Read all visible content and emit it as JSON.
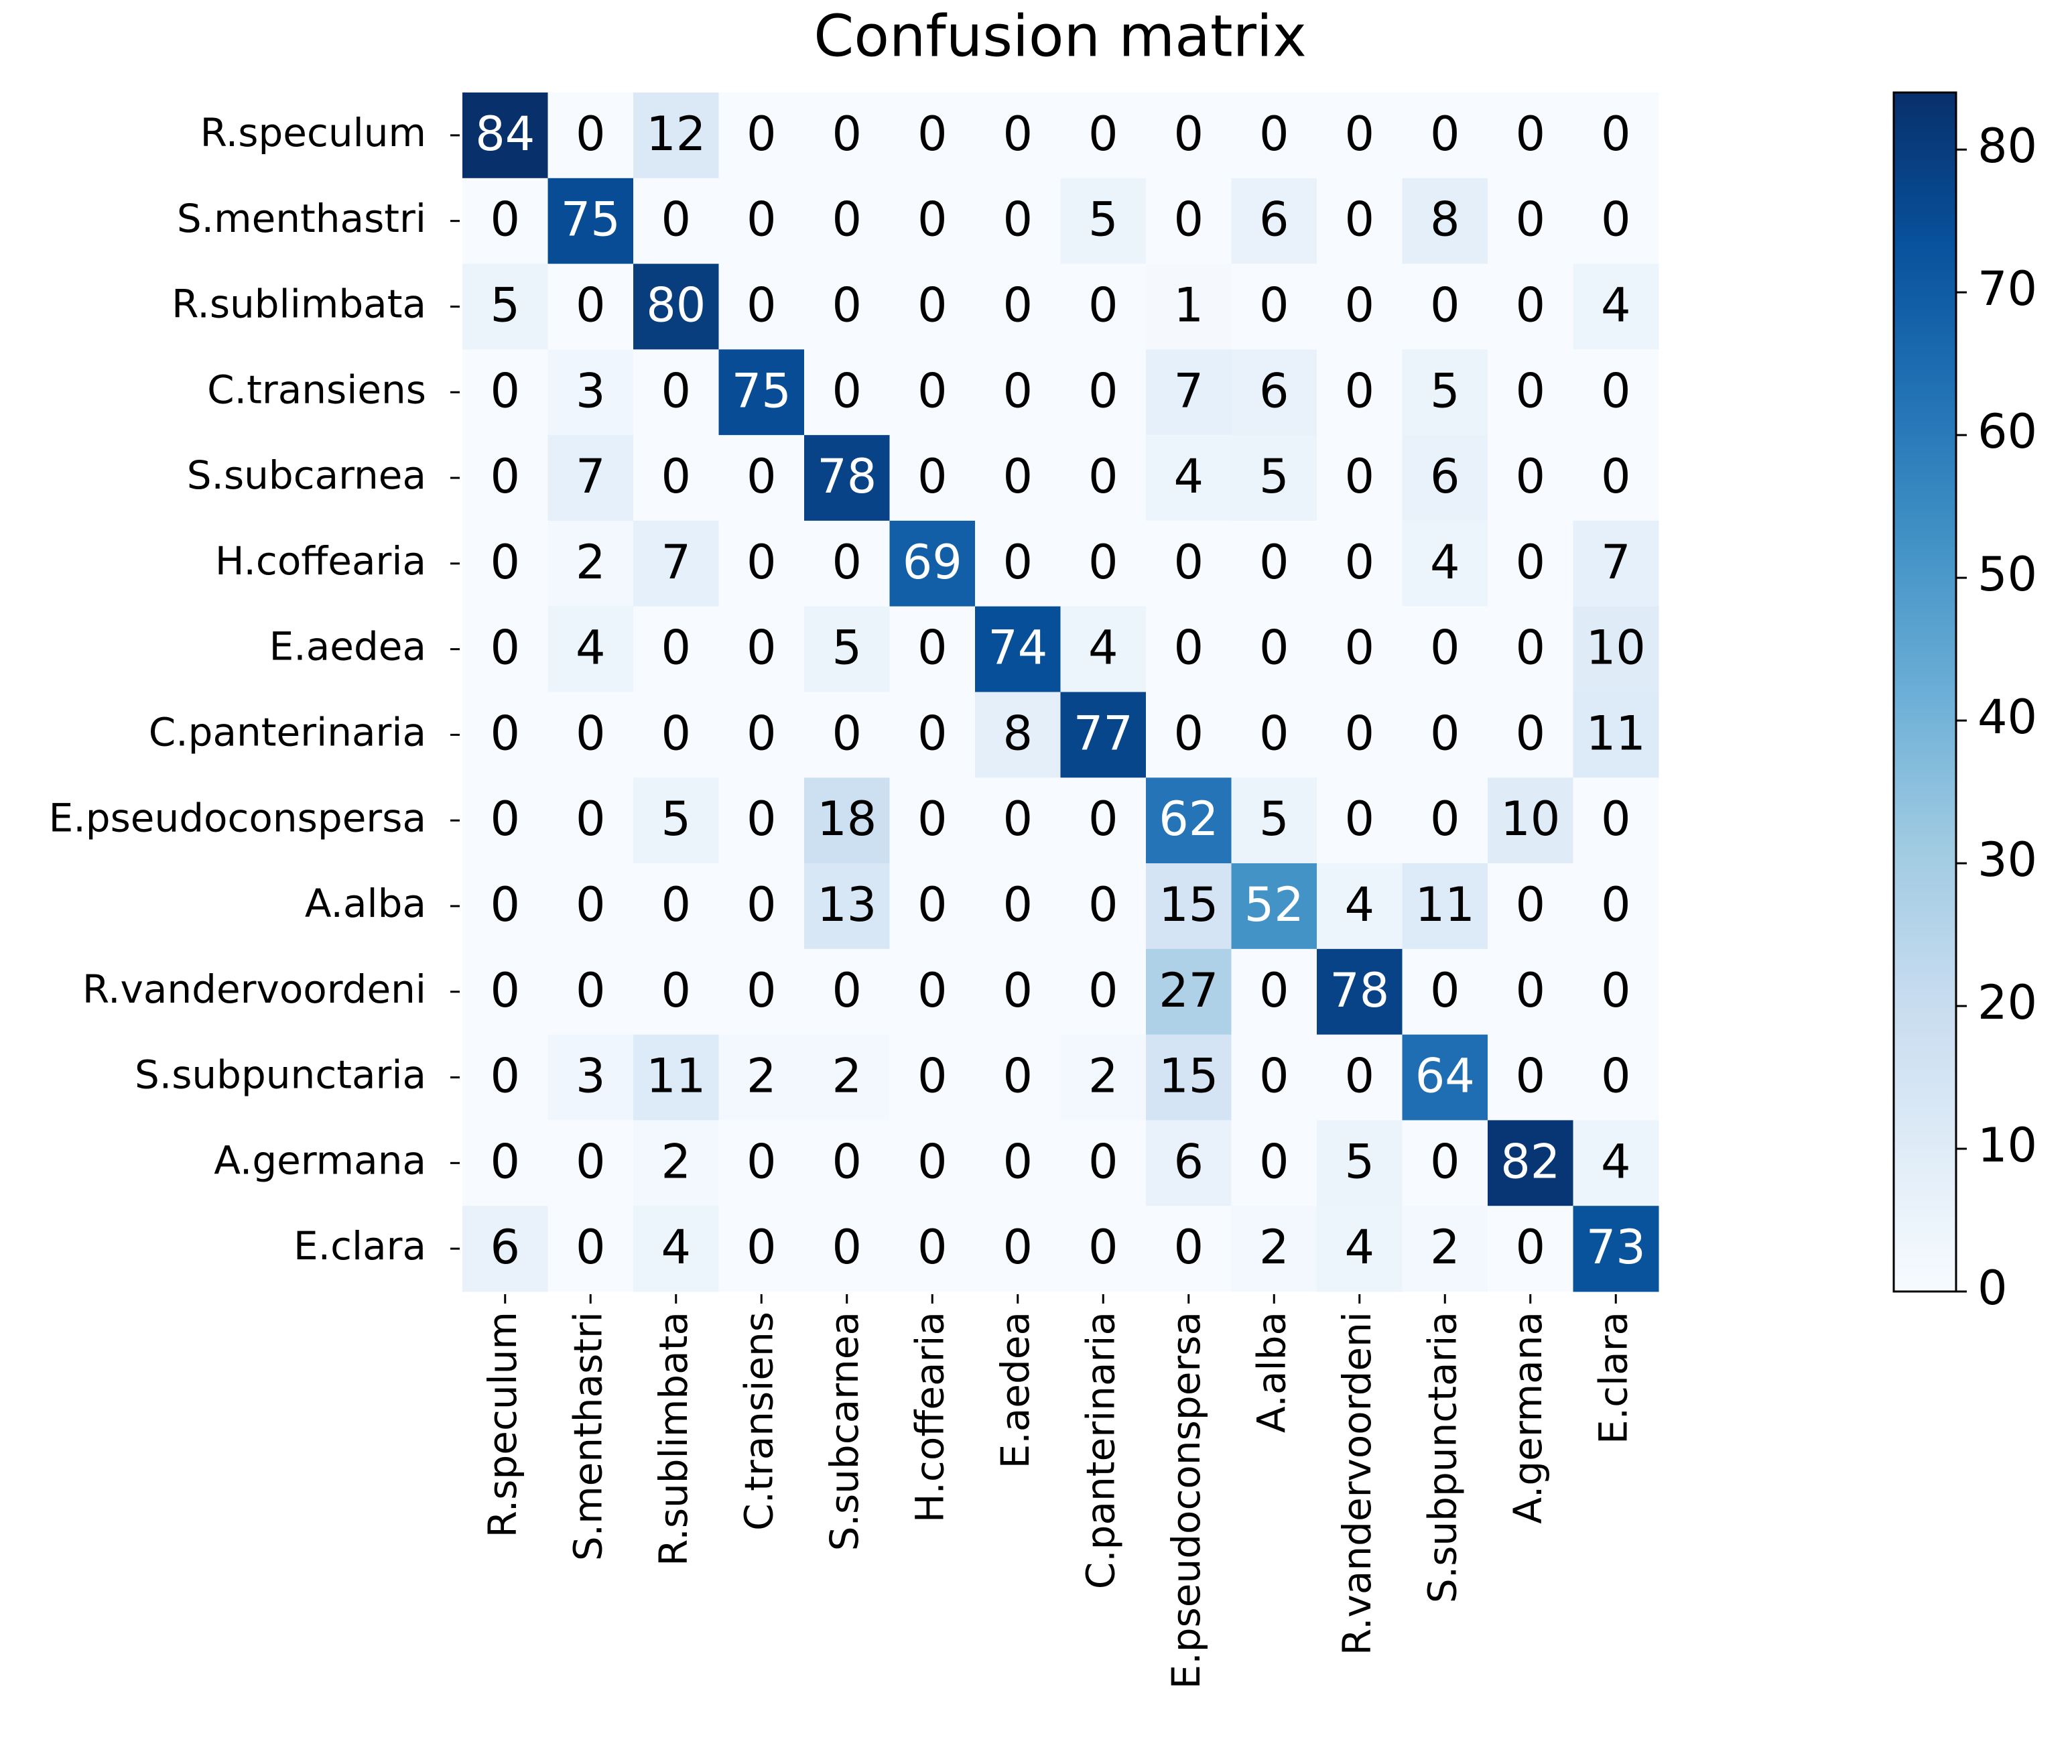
{
  "chart_data": {
    "type": "heatmap",
    "title": "Confusion matrix",
    "x_categories": [
      "R.speculum",
      "S.menthastri",
      "R.sublimbata",
      "C.transiens",
      "S.subcarnea",
      "H.coffearia",
      "E.aedea",
      "C.panterinaria",
      "E.pseudoconspersa",
      "A.alba",
      "R.vandervoordeni",
      "S.subpunctaria",
      "A.germana",
      "E.clara"
    ],
    "y_categories": [
      "R.speculum",
      "S.menthastri",
      "R.sublimbata",
      "C.transiens",
      "S.subcarnea",
      "H.coffearia",
      "E.aedea",
      "C.panterinaria",
      "E.pseudoconspersa",
      "A.alba",
      "R.vandervoordeni",
      "S.subpunctaria",
      "A.germana",
      "E.clara"
    ],
    "values": [
      [
        84,
        0,
        12,
        0,
        0,
        0,
        0,
        0,
        0,
        0,
        0,
        0,
        0,
        0
      ],
      [
        0,
        75,
        0,
        0,
        0,
        0,
        0,
        5,
        0,
        6,
        0,
        8,
        0,
        0
      ],
      [
        5,
        0,
        80,
        0,
        0,
        0,
        0,
        0,
        1,
        0,
        0,
        0,
        0,
        4
      ],
      [
        0,
        3,
        0,
        75,
        0,
        0,
        0,
        0,
        7,
        6,
        0,
        5,
        0,
        0
      ],
      [
        0,
        7,
        0,
        0,
        78,
        0,
        0,
        0,
        4,
        5,
        0,
        6,
        0,
        0
      ],
      [
        0,
        2,
        7,
        0,
        0,
        69,
        0,
        0,
        0,
        0,
        0,
        4,
        0,
        7
      ],
      [
        0,
        4,
        0,
        0,
        5,
        0,
        74,
        4,
        0,
        0,
        0,
        0,
        0,
        10
      ],
      [
        0,
        0,
        0,
        0,
        0,
        0,
        8,
        77,
        0,
        0,
        0,
        0,
        0,
        11
      ],
      [
        0,
        0,
        5,
        0,
        18,
        0,
        0,
        0,
        62,
        5,
        0,
        0,
        10,
        0
      ],
      [
        0,
        0,
        0,
        0,
        13,
        0,
        0,
        0,
        15,
        52,
        4,
        11,
        0,
        0
      ],
      [
        0,
        0,
        0,
        0,
        0,
        0,
        0,
        0,
        27,
        0,
        78,
        0,
        0,
        0
      ],
      [
        0,
        3,
        11,
        2,
        2,
        0,
        0,
        2,
        15,
        0,
        0,
        64,
        0,
        0
      ],
      [
        0,
        0,
        2,
        0,
        0,
        0,
        0,
        0,
        6,
        0,
        5,
        0,
        82,
        4
      ],
      [
        6,
        0,
        4,
        0,
        0,
        0,
        0,
        0,
        0,
        2,
        4,
        2,
        0,
        73
      ]
    ],
    "colormap": "Blues",
    "clim": [
      0,
      84
    ],
    "cticks": [
      0,
      10,
      20,
      30,
      40,
      50,
      60,
      70,
      80
    ]
  }
}
